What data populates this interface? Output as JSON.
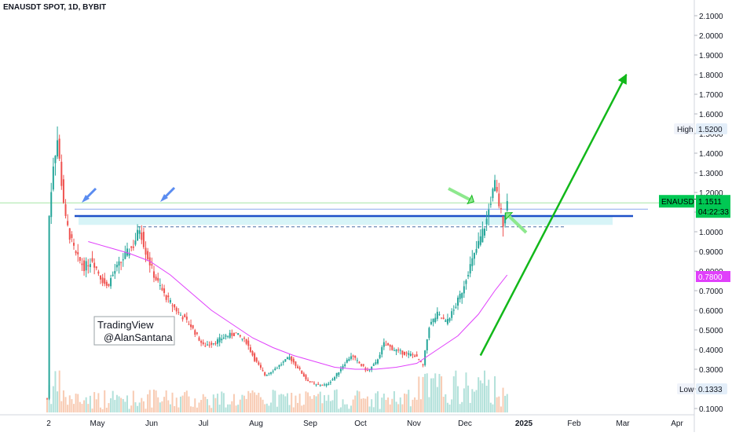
{
  "header": {
    "symbol_title": "ENAUSDT SPOT, 1D, BYBIT"
  },
  "watermark": {
    "line1": "TradingView",
    "line2": "@AlanSantana"
  },
  "colors": {
    "up": "#26a69a",
    "down": "#ef5350",
    "ma": "#e040fb",
    "price_box": "#00c853",
    "ma_box": "#e040fb",
    "resistance": "#1e50c8",
    "arrow_green": "#12b81a",
    "arrow_blue": "#5a8cf0"
  },
  "price_axis": {
    "ticks": [
      "2.1000",
      "2.0000",
      "1.9000",
      "1.8000",
      "1.7000",
      "1.6000",
      "1.5000",
      "1.4000",
      "1.3000",
      "1.2000",
      "1.1000",
      "1.0000",
      "0.9000",
      "0.8000",
      "0.7000",
      "0.6000",
      "0.5000",
      "0.4000",
      "0.3000",
      "0.2000",
      "0.1000"
    ],
    "high_label": "High",
    "high_value": "1.5200",
    "symbol_label": "ENAUSDT",
    "last_price": "1.1511",
    "countdown": "04:22:33",
    "ma_value": "0.7800",
    "low_label": "Low",
    "low_value": "0.1333"
  },
  "time_axis": {
    "labels": [
      "2",
      "May",
      "Jun",
      "Jul",
      "Aug",
      "Sep",
      "Oct",
      "Nov",
      "Dec",
      "2025",
      "Feb",
      "Mar",
      "Apr"
    ]
  },
  "chart_data": {
    "type": "candlestick",
    "title": "ENAUSDT SPOT, 1D, BYBIT",
    "y_scale": "linear",
    "ylim": [
      0.05,
      2.12
    ],
    "x_ticks": [
      "2",
      "May",
      "Jun",
      "Jul",
      "Aug",
      "Sep",
      "Oct",
      "Nov",
      "Dec",
      "2025",
      "Feb",
      "Mar",
      "Apr"
    ],
    "price_path": [
      [
        0,
        0.15
      ],
      [
        1,
        1.08
      ],
      [
        3,
        1.35
      ],
      [
        5,
        1.47
      ],
      [
        7,
        1.25
      ],
      [
        9,
        1.06
      ],
      [
        11,
        0.98
      ],
      [
        14,
        0.88
      ],
      [
        18,
        0.82
      ],
      [
        22,
        0.86
      ],
      [
        26,
        0.77
      ],
      [
        29,
        0.72
      ],
      [
        33,
        0.8
      ],
      [
        38,
        0.88
      ],
      [
        42,
        0.93
      ],
      [
        45,
        1.02
      ],
      [
        48,
        0.9
      ],
      [
        52,
        0.78
      ],
      [
        57,
        0.68
      ],
      [
        63,
        0.6
      ],
      [
        70,
        0.52
      ],
      [
        76,
        0.42
      ],
      [
        82,
        0.44
      ],
      [
        87,
        0.47
      ],
      [
        92,
        0.48
      ],
      [
        97,
        0.44
      ],
      [
        101,
        0.35
      ],
      [
        106,
        0.27
      ],
      [
        112,
        0.31
      ],
      [
        118,
        0.36
      ],
      [
        122,
        0.31
      ],
      [
        126,
        0.25
      ],
      [
        131,
        0.22
      ],
      [
        136,
        0.22
      ],
      [
        140,
        0.26
      ],
      [
        144,
        0.32
      ],
      [
        148,
        0.37
      ],
      [
        152,
        0.33
      ],
      [
        156,
        0.29
      ],
      [
        160,
        0.33
      ],
      [
        164,
        0.43
      ],
      [
        169,
        0.4
      ],
      [
        174,
        0.38
      ],
      [
        179,
        0.37
      ],
      [
        183,
        0.32
      ],
      [
        186,
        0.52
      ],
      [
        190,
        0.58
      ],
      [
        194,
        0.54
      ],
      [
        198,
        0.6
      ],
      [
        202,
        0.7
      ],
      [
        205,
        0.8
      ],
      [
        208,
        0.88
      ],
      [
        211,
        0.97
      ],
      [
        214,
        1.06
      ],
      [
        216,
        1.16
      ],
      [
        218,
        1.24
      ],
      [
        220,
        1.14
      ],
      [
        222,
        1.05
      ],
      [
        224,
        1.15
      ]
    ],
    "moving_average": [
      [
        20,
        0.95
      ],
      [
        30,
        0.92
      ],
      [
        40,
        0.89
      ],
      [
        50,
        0.85
      ],
      [
        60,
        0.78
      ],
      [
        70,
        0.69
      ],
      [
        80,
        0.6
      ],
      [
        90,
        0.53
      ],
      [
        100,
        0.46
      ],
      [
        110,
        0.41
      ],
      [
        120,
        0.37
      ],
      [
        130,
        0.34
      ],
      [
        140,
        0.31
      ],
      [
        150,
        0.3
      ],
      [
        160,
        0.3
      ],
      [
        170,
        0.31
      ],
      [
        180,
        0.33
      ],
      [
        190,
        0.4
      ],
      [
        200,
        0.47
      ],
      [
        210,
        0.58
      ],
      [
        218,
        0.7
      ],
      [
        224,
        0.78
      ]
    ],
    "resistance_line": 1.08,
    "zone": [
      1.035,
      1.08
    ],
    "dashed_line": 1.025,
    "high": 1.52,
    "low": 0.1333,
    "last_price": 1.1511,
    "ma_last": 0.78,
    "projection": {
      "from": 0.37,
      "to": 1.8
    }
  }
}
